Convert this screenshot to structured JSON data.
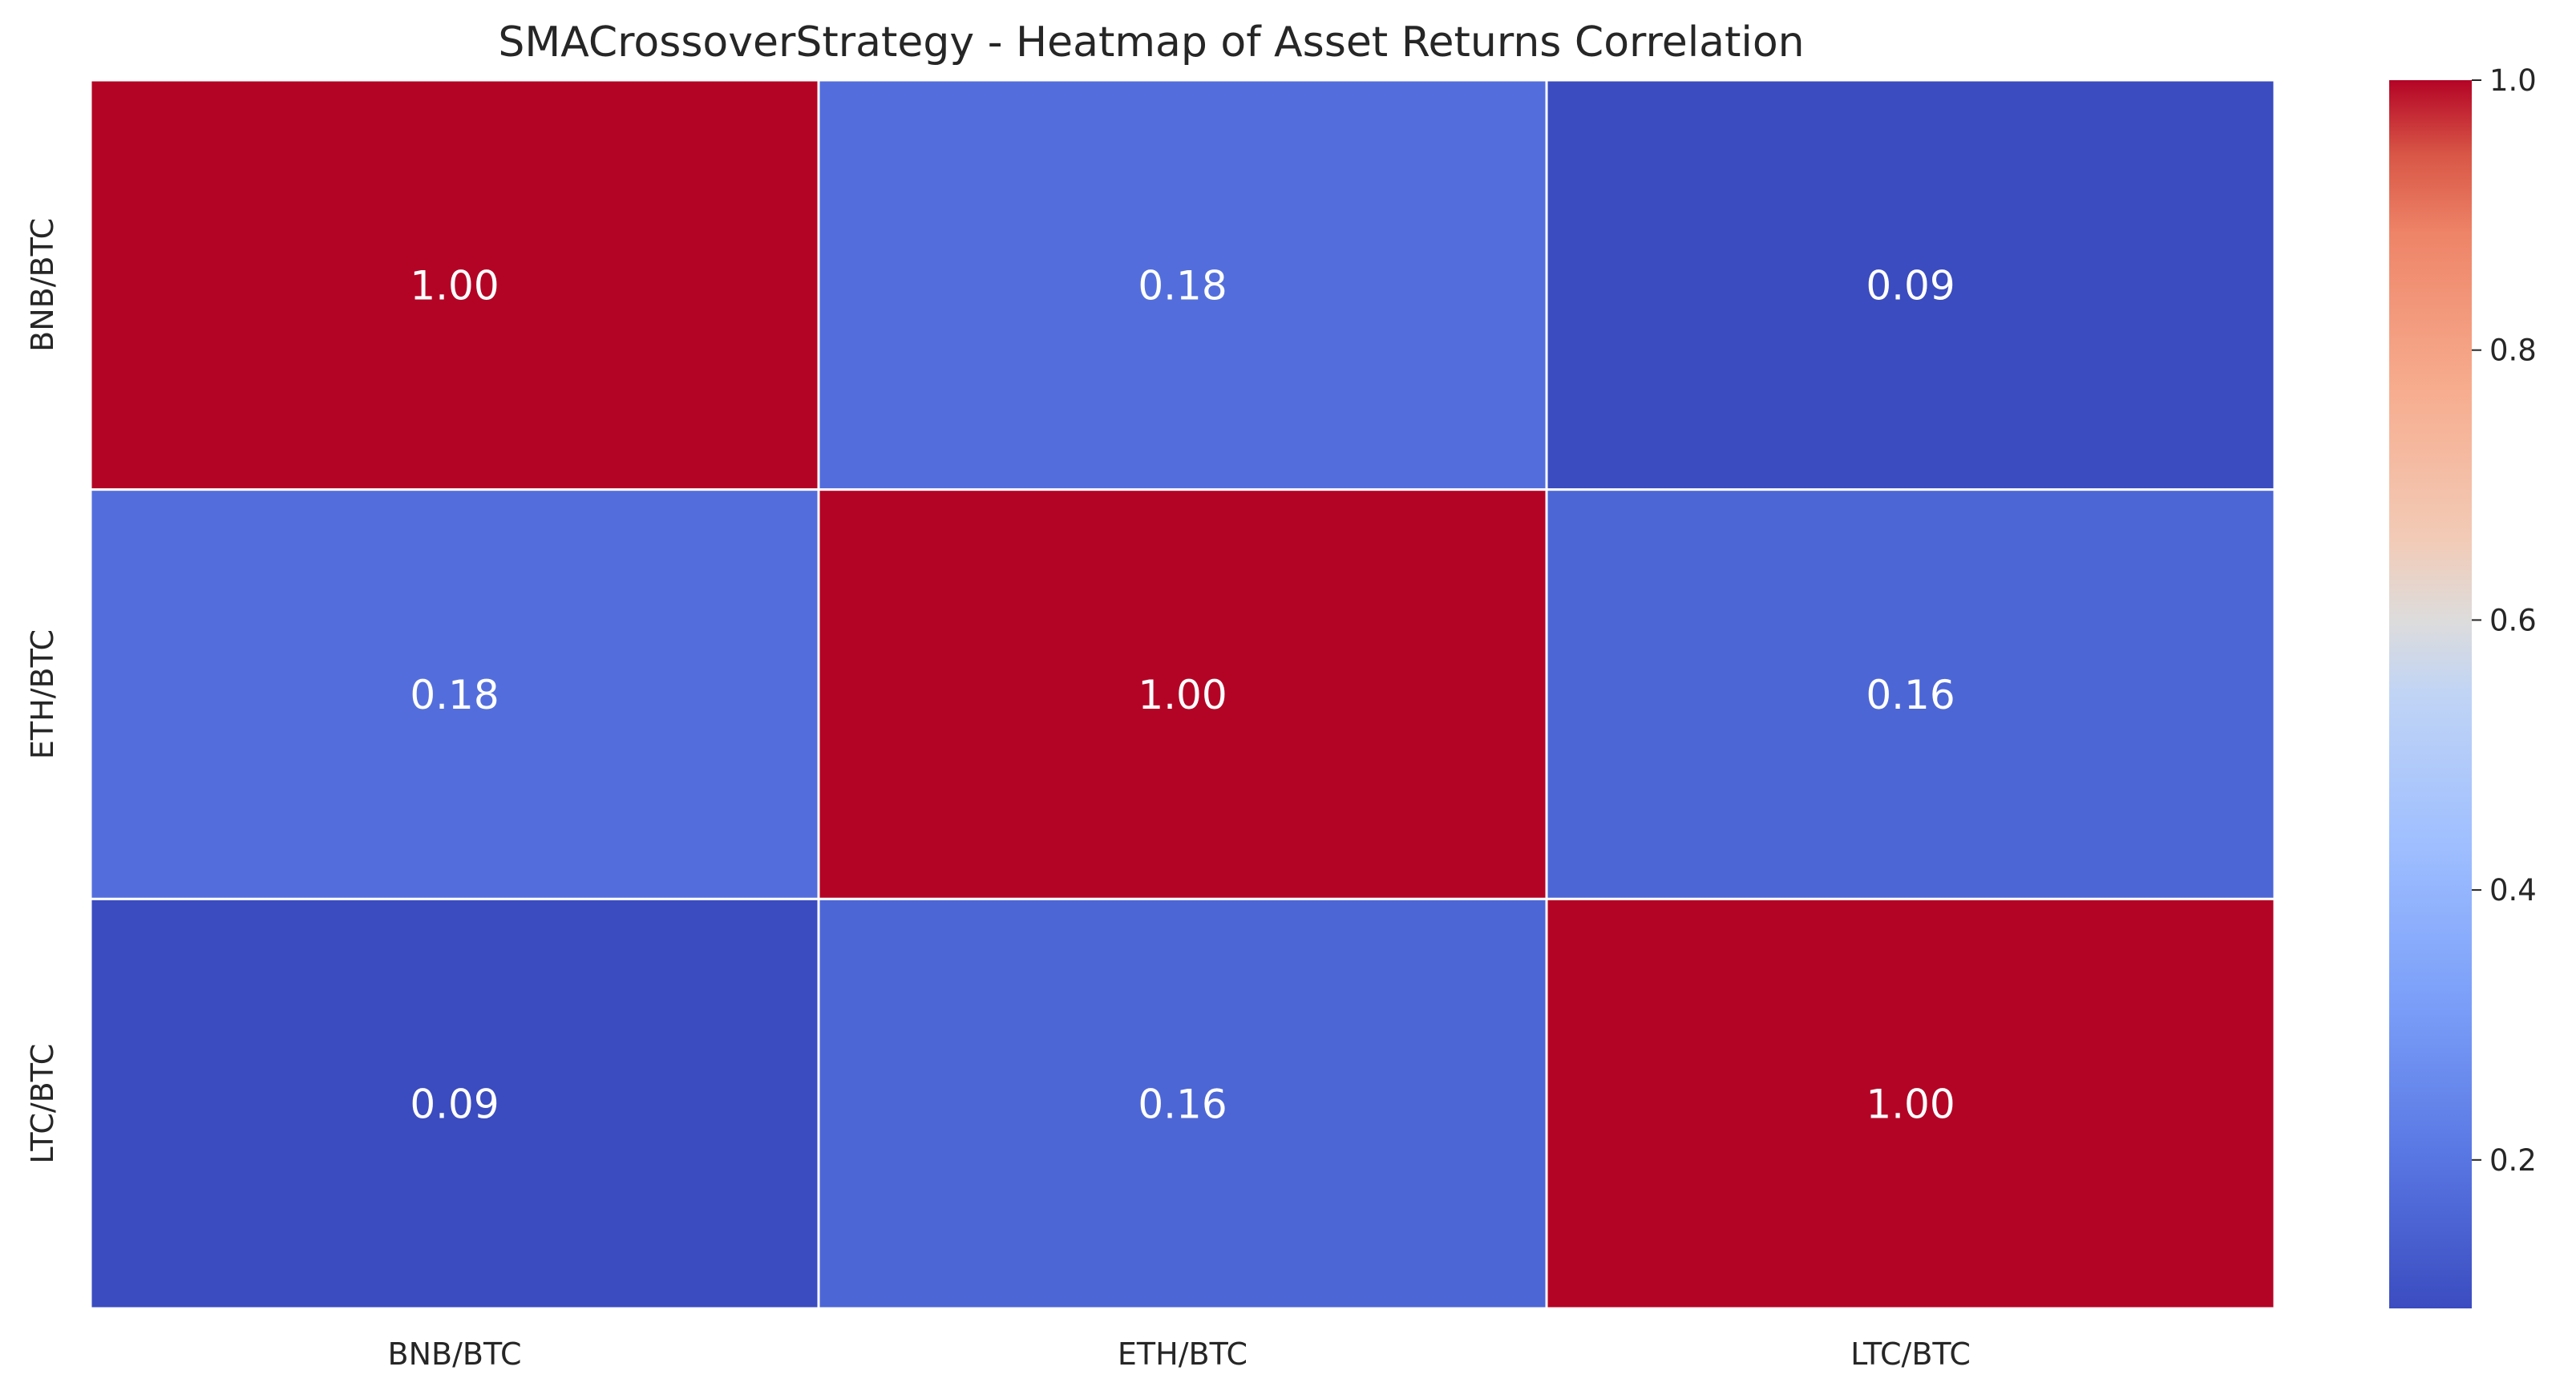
{
  "chart_data": {
    "type": "heatmap",
    "title": "SMACrossoverStrategy - Heatmap of Asset Returns Correlation",
    "xlabel": "",
    "ylabel": "",
    "x_categories": [
      "BNB/BTC",
      "ETH/BTC",
      "LTC/BTC"
    ],
    "y_categories": [
      "BNB/BTC",
      "ETH/BTC",
      "LTC/BTC"
    ],
    "values": [
      [
        1.0,
        0.18,
        0.09
      ],
      [
        0.18,
        1.0,
        0.16
      ],
      [
        0.09,
        0.16,
        1.0
      ]
    ],
    "annotations": [
      [
        "1.00",
        "0.18",
        "0.09"
      ],
      [
        "0.18",
        "1.00",
        "0.16"
      ],
      [
        "0.09",
        "0.16",
        "1.00"
      ]
    ],
    "colormap": "coolwarm",
    "colorbar": {
      "vmin": 0.09,
      "vmax": 1.0,
      "ticks": [
        0.2,
        0.4,
        0.6,
        0.8,
        1.0
      ],
      "tick_labels": [
        "0.2",
        "0.4",
        "0.6",
        "0.8",
        "1.0"
      ]
    },
    "grid": false,
    "cell_border_color": "#ffffff",
    "annotation_color": "#ffffff"
  }
}
